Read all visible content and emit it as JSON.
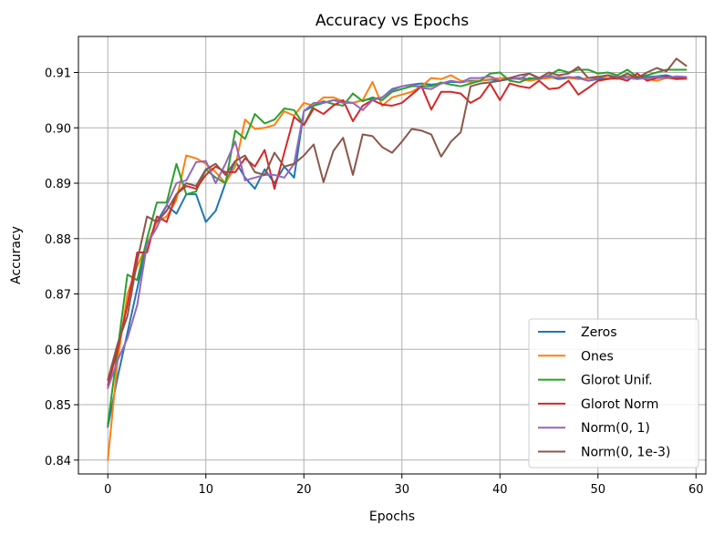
{
  "chart_data": {
    "type": "line",
    "title": "Accuracy vs Epochs",
    "xlabel": "Epochs",
    "ylabel": "Accuracy",
    "xlim": [
      -3,
      61
    ],
    "ylim": [
      0.8375,
      0.9165
    ],
    "xticks": [
      0,
      10,
      20,
      30,
      40,
      50,
      60
    ],
    "yticks": [
      0.84,
      0.85,
      0.86,
      0.87,
      0.88,
      0.89,
      0.9,
      0.91
    ],
    "ytick_labels": [
      "0.84",
      "0.85",
      "0.86",
      "0.87",
      "0.88",
      "0.89",
      "0.90",
      "0.91"
    ],
    "grid": true,
    "legend_position": "lower-right",
    "series": [
      {
        "name": "Zeros",
        "color": "#1f77b4",
        "values": [
          0.846,
          0.855,
          0.863,
          0.871,
          0.879,
          0.883,
          0.886,
          0.8845,
          0.888,
          0.888,
          0.883,
          0.885,
          0.89,
          0.894,
          0.891,
          0.889,
          0.8925,
          0.89,
          0.893,
          0.891,
          0.903,
          0.904,
          0.9045,
          0.905,
          0.9048,
          0.9045,
          0.905,
          0.9052,
          0.9055,
          0.907,
          0.9075,
          0.9078,
          0.908,
          0.9078,
          0.908,
          0.9083,
          0.9082,
          0.9085,
          0.9085,
          0.9087,
          0.9085,
          0.9088,
          0.909,
          0.9088,
          0.909,
          0.9092,
          0.9088,
          0.909,
          0.9092,
          0.9085,
          0.9088,
          0.909,
          0.9092,
          0.9093,
          0.909,
          0.9092,
          0.9093,
          0.9095,
          0.909,
          0.909
        ]
      },
      {
        "name": "Ones",
        "color": "#ff7f0e",
        "values": [
          0.84,
          0.858,
          0.87,
          0.875,
          0.879,
          0.883,
          0.884,
          0.887,
          0.895,
          0.8945,
          0.8935,
          0.892,
          0.89,
          0.893,
          0.9015,
          0.8998,
          0.9,
          0.9005,
          0.903,
          0.9022,
          0.9045,
          0.904,
          0.9055,
          0.9055,
          0.9048,
          0.9045,
          0.905,
          0.9083,
          0.904,
          0.9055,
          0.906,
          0.9065,
          0.9075,
          0.909,
          0.9088,
          0.9095,
          0.9085,
          0.9083,
          0.9085,
          0.9088,
          0.909,
          0.909,
          0.9088,
          0.9085,
          0.9088,
          0.909,
          0.9092,
          0.909,
          0.9088,
          0.909,
          0.9093,
          0.909,
          0.9088,
          0.9092,
          0.909,
          0.9088,
          0.9085,
          0.909,
          0.9088,
          0.9088
        ]
      },
      {
        "name": "Glorot Unif.",
        "color": "#2ca02c",
        "values": [
          0.8465,
          0.86,
          0.8735,
          0.8725,
          0.88,
          0.8865,
          0.8865,
          0.8935,
          0.888,
          0.8885,
          0.8925,
          0.891,
          0.89,
          0.8995,
          0.898,
          0.9025,
          0.9008,
          0.9015,
          0.9035,
          0.9032,
          0.9005,
          0.904,
          0.9048,
          0.9043,
          0.904,
          0.9062,
          0.9048,
          0.9055,
          0.905,
          0.9065,
          0.907,
          0.9075,
          0.9075,
          0.9075,
          0.9082,
          0.9078,
          0.9075,
          0.908,
          0.9085,
          0.9098,
          0.91,
          0.9085,
          0.9082,
          0.909,
          0.9088,
          0.9095,
          0.9105,
          0.91,
          0.9105,
          0.9105,
          0.9098,
          0.91,
          0.9095,
          0.9105,
          0.9092,
          0.9095,
          0.91,
          0.9105,
          0.9105,
          0.9105
        ]
      },
      {
        "name": "Glorot Norm",
        "color": "#d62728",
        "values": [
          0.8535,
          0.86,
          0.868,
          0.8775,
          0.8775,
          0.884,
          0.883,
          0.888,
          0.8895,
          0.889,
          0.8915,
          0.893,
          0.892,
          0.892,
          0.8945,
          0.893,
          0.896,
          0.889,
          0.8955,
          0.902,
          0.9005,
          0.9035,
          0.9025,
          0.904,
          0.905,
          0.9012,
          0.904,
          0.905,
          0.9042,
          0.904,
          0.9045,
          0.906,
          0.9075,
          0.9033,
          0.9065,
          0.9065,
          0.9062,
          0.9045,
          0.9055,
          0.908,
          0.905,
          0.908,
          0.9075,
          0.9072,
          0.9085,
          0.907,
          0.9072,
          0.9085,
          0.906,
          0.9072,
          0.9085,
          0.9088,
          0.909,
          0.9085,
          0.9098,
          0.9085,
          0.909,
          0.9092,
          0.9088,
          0.909
        ]
      },
      {
        "name": "Norm(0, 1)",
        "color": "#9467bd",
        "values": [
          0.853,
          0.858,
          0.862,
          0.868,
          0.879,
          0.882,
          0.886,
          0.89,
          0.8905,
          0.8938,
          0.894,
          0.89,
          0.8935,
          0.8975,
          0.8905,
          0.891,
          0.8915,
          0.8915,
          0.891,
          0.8935,
          0.903,
          0.9045,
          0.9045,
          0.905,
          0.9045,
          0.9045,
          0.9032,
          0.905,
          0.9055,
          0.9068,
          0.9075,
          0.9078,
          0.9072,
          0.907,
          0.908,
          0.9085,
          0.9082,
          0.909,
          0.909,
          0.9093,
          0.9085,
          0.909,
          0.9088,
          0.9098,
          0.9088,
          0.9095,
          0.909,
          0.9092,
          0.909,
          0.9085,
          0.909,
          0.9095,
          0.9092,
          0.909,
          0.9088,
          0.909,
          0.9092,
          0.909,
          0.9093,
          0.9092
        ]
      },
      {
        "name": "Norm(0, 1e-3)",
        "color": "#8c564b",
        "values": [
          0.8545,
          0.861,
          0.866,
          0.876,
          0.884,
          0.883,
          0.885,
          0.888,
          0.89,
          0.8895,
          0.8925,
          0.8935,
          0.8915,
          0.894,
          0.895,
          0.892,
          0.8915,
          0.8955,
          0.893,
          0.8935,
          0.895,
          0.897,
          0.8902,
          0.8958,
          0.8982,
          0.8915,
          0.8988,
          0.8985,
          0.8965,
          0.8955,
          0.8975,
          0.8998,
          0.8995,
          0.8988,
          0.8948,
          0.8975,
          0.8992,
          0.9075,
          0.908,
          0.9082,
          0.9085,
          0.909,
          0.9095,
          0.9098,
          0.909,
          0.91,
          0.9095,
          0.9098,
          0.911,
          0.909,
          0.9092,
          0.9095,
          0.909,
          0.9098,
          0.909,
          0.91,
          0.9108,
          0.9102,
          0.9125,
          0.9112
        ]
      }
    ]
  }
}
